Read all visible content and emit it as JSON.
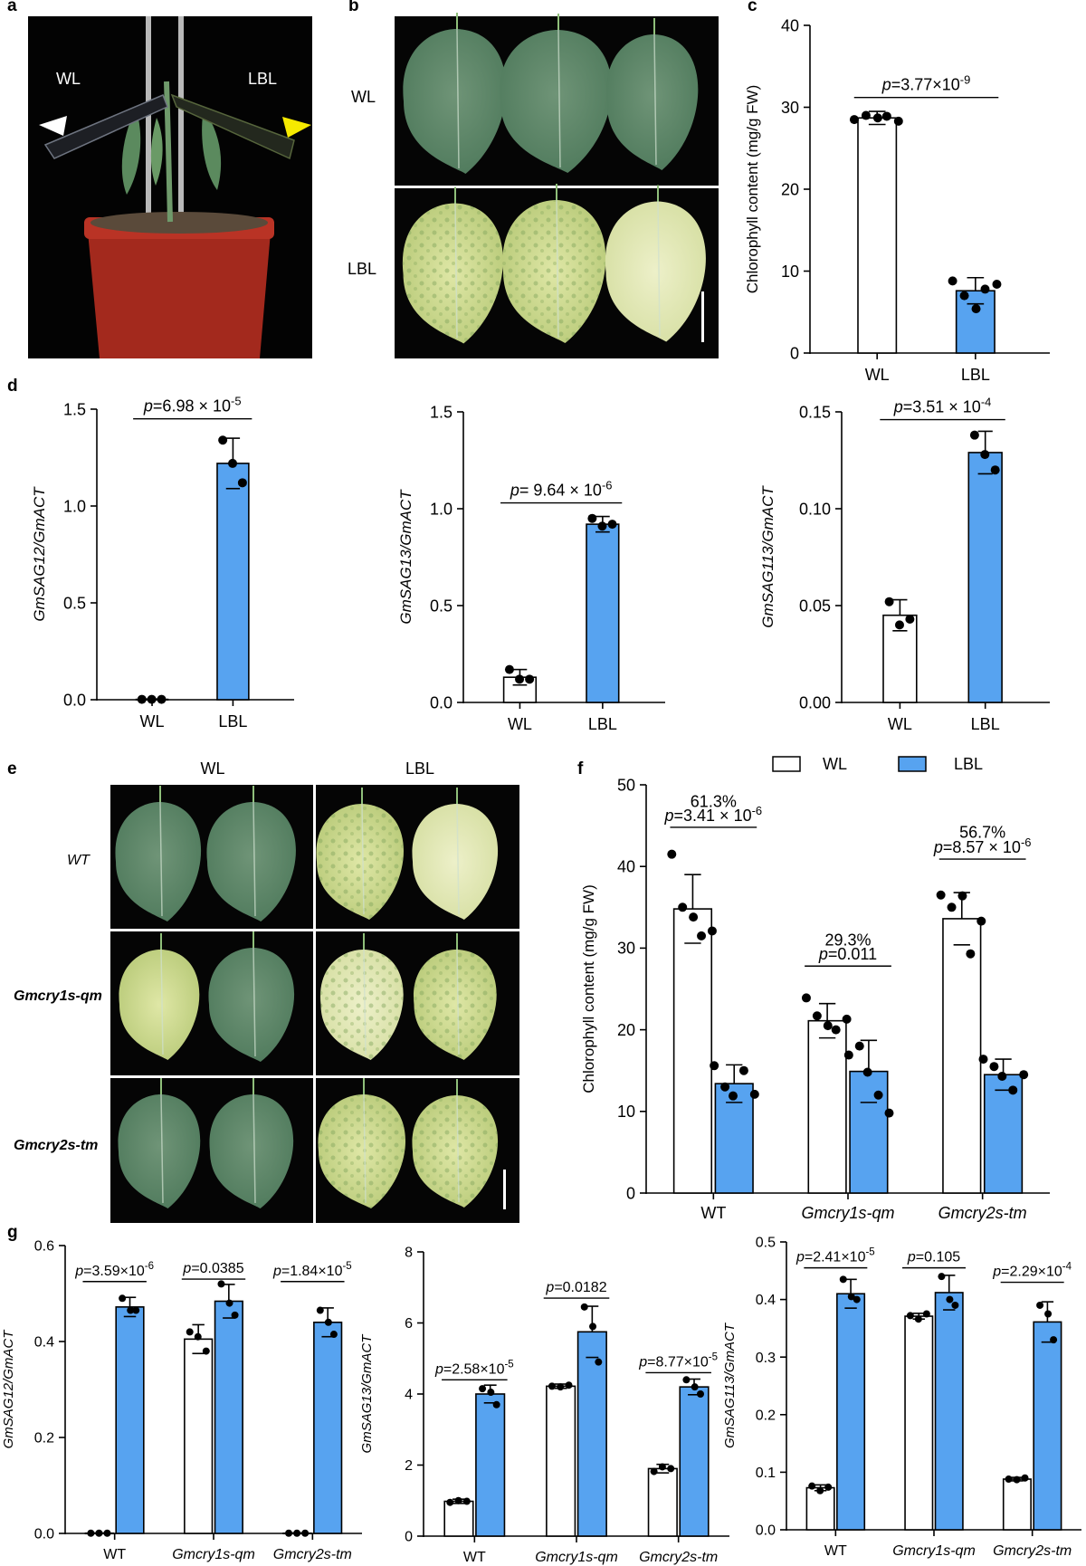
{
  "panel_labels": {
    "a": "a",
    "b": "b",
    "c": "c",
    "d": "d",
    "e": "e",
    "f": "f",
    "g": "g"
  },
  "photo_a": {
    "left": "WL",
    "right": "LBL"
  },
  "photo_b": {
    "row1": "WL",
    "row2": "LBL"
  },
  "photo_e": {
    "col1": "WL",
    "col2": "LBL",
    "row1": "WT",
    "row2": "Gmcry1s-qm",
    "row3": "Gmcry2s-tm"
  },
  "legend_f": {
    "wl": "WL",
    "lbl": "LBL"
  },
  "colors": {
    "wl": "#ffffff",
    "lbl": "#57a3f0",
    "stroke": "#000000"
  },
  "chart_data": [
    {
      "id": "c",
      "type": "bar",
      "ylabel": "Chlorophyll content (mg/g FW)",
      "ylim": [
        0,
        40
      ],
      "yticks": [
        0,
        10,
        20,
        30,
        40
      ],
      "categories": [
        "WL",
        "LBL"
      ],
      "series": [
        {
          "values": [
            28.7,
            7.6
          ],
          "errors": [
            0.8,
            1.6
          ],
          "colors": [
            "wl",
            "lbl"
          ]
        }
      ],
      "points": [
        [
          28.5,
          29.0,
          28.7,
          28.9,
          28.3
        ],
        [
          8.8,
          7.0,
          5.4,
          7.8,
          8.4
        ]
      ],
      "annotations": [
        {
          "text": "p=3.77×10-9",
          "base": "p=3.77×10",
          "exp": "-9",
          "y": 31.2
        }
      ]
    },
    {
      "id": "d1",
      "type": "bar",
      "ylabel": "GmSAG12/GmACT",
      "ylim": [
        0,
        1.5
      ],
      "yticks": [
        "0.0",
        "0.5",
        "1.0",
        "1.5"
      ],
      "categories": [
        "WL",
        "LBL"
      ],
      "series": [
        {
          "values": [
            0.002,
            1.22
          ],
          "errors": [
            0.002,
            0.13
          ],
          "colors": [
            "wl",
            "lbl"
          ]
        }
      ],
      "points": [
        [
          0.002,
          0.002,
          0.002
        ],
        [
          1.34,
          1.22,
          1.12
        ]
      ],
      "annotations": [
        {
          "text": "p=6.98 × 10-5",
          "base": "p=6.98 × 10",
          "exp": "-5",
          "y": 1.45
        }
      ]
    },
    {
      "id": "d2",
      "type": "bar",
      "ylabel": "GmSAG13/GmACT",
      "ylim": [
        0,
        1.5
      ],
      "yticks": [
        "0.0",
        "0.5",
        "1.0",
        "1.5"
      ],
      "categories": [
        "WL",
        "LBL"
      ],
      "series": [
        {
          "values": [
            0.13,
            0.92
          ],
          "errors": [
            0.04,
            0.04
          ],
          "colors": [
            "wl",
            "lbl"
          ]
        }
      ],
      "points": [
        [
          0.17,
          0.12,
          0.12
        ],
        [
          0.95,
          0.91,
          0.92
        ]
      ],
      "annotations": [
        {
          "text": "p= 9.64 × 10-6",
          "base": "p= 9.64 × 10",
          "exp": "-6",
          "y": 1.03
        }
      ]
    },
    {
      "id": "d3",
      "type": "bar",
      "ylabel": "GmSAG113/GmACT",
      "ylim": [
        0,
        0.15
      ],
      "yticks": [
        "0.00",
        "0.05",
        "0.10",
        "0.15"
      ],
      "categories": [
        "WL",
        "LBL"
      ],
      "series": [
        {
          "values": [
            0.045,
            0.129
          ],
          "errors": [
            0.008,
            0.011
          ],
          "colors": [
            "wl",
            "lbl"
          ]
        }
      ],
      "points": [
        [
          0.052,
          0.04,
          0.043
        ],
        [
          0.138,
          0.128,
          0.12
        ]
      ],
      "annotations": [
        {
          "text": "p=3.51 × 10-4",
          "base": "p=3.51 × 10",
          "exp": "-4",
          "y": 0.146
        }
      ]
    },
    {
      "id": "f",
      "type": "bar",
      "ylabel": "Chlorophyll content (mg/g FW)",
      "ylim": [
        0,
        50
      ],
      "yticks": [
        0,
        10,
        20,
        30,
        40,
        50
      ],
      "categories": [
        "WT",
        "Gmcry1s-qm",
        "Gmcry2s-tm"
      ],
      "italic_categories": [
        false,
        true,
        true
      ],
      "series": [
        {
          "name": "WL",
          "values": [
            34.8,
            21.1,
            33.6
          ],
          "errors": [
            4.2,
            2.1,
            3.2
          ]
        },
        {
          "name": "LBL",
          "values": [
            13.4,
            14.9,
            14.5
          ],
          "errors": [
            2.3,
            3.8,
            1.9
          ]
        }
      ],
      "points": [
        [
          [
            41.5,
            35.0,
            33.8,
            31.5,
            32.1
          ],
          [
            15.6,
            13.0,
            11.9,
            15.0,
            12.1
          ]
        ],
        [
          [
            23.9,
            21.7,
            20.5,
            20.0,
            21.3
          ],
          [
            16.9,
            18.0,
            14.8,
            12.0,
            9.8
          ]
        ],
        [
          [
            36.5,
            35.0,
            36.4,
            29.3,
            33.3
          ],
          [
            16.4,
            15.5,
            14.3,
            12.6,
            14.5
          ]
        ]
      ],
      "annotations": [
        {
          "text": "61.3%",
          "y": 47.3,
          "group": 0,
          "plain": true
        },
        {
          "text": "p=3.41 × 10-6",
          "base": "p=3.41 × 10",
          "exp": "-6",
          "y": 44.8,
          "group": 0
        },
        {
          "text": "29.3%",
          "y": 30.3,
          "group": 1,
          "plain": true
        },
        {
          "text": "p=0.011",
          "base": "p=0.011",
          "exp": "",
          "y": 27.8,
          "group": 1
        },
        {
          "text": "56.7%",
          "y": 43.5,
          "group": 2,
          "plain": true
        },
        {
          "text": "p=8.57 × 10-6",
          "base": "p=8.57 × 10",
          "exp": "-6",
          "y": 40.9,
          "group": 2
        }
      ]
    },
    {
      "id": "g1",
      "type": "bar",
      "ylabel": "GmSAG12/GmACT",
      "ylim": [
        0,
        0.6
      ],
      "yticks": [
        "0.0",
        "0.2",
        "0.4",
        "0.6"
      ],
      "categories": [
        "WT",
        "Gmcry1s-qm",
        "Gmcry2s-tm"
      ],
      "italic_categories": [
        false,
        true,
        true
      ],
      "series": [
        {
          "name": "WL",
          "values": [
            0.0005,
            0.405,
            0.0005
          ],
          "errors": [
            0.0005,
            0.03,
            0.0005
          ]
        },
        {
          "name": "LBL",
          "values": [
            0.472,
            0.484,
            0.44
          ],
          "errors": [
            0.02,
            0.035,
            0.03
          ]
        }
      ],
      "points": [
        [
          [
            0.0005,
            0.0005,
            0.0005
          ],
          [
            0.49,
            0.465,
            0.465
          ]
        ],
        [
          [
            0.42,
            0.41,
            0.38
          ],
          [
            0.52,
            0.48,
            0.455
          ]
        ],
        [
          [
            0.0005,
            0.0005,
            0.0005
          ],
          [
            0.465,
            0.44,
            0.415
          ]
        ]
      ],
      "annotations": [
        {
          "text": "p=3.59×10-6",
          "base": "p=3.59×10",
          "exp": "-6",
          "y": 0.525,
          "group": 0
        },
        {
          "text": "p=0.0385",
          "base": "p=0.0385",
          "exp": "",
          "y": 0.53,
          "group": 1
        },
        {
          "text": "p=1.84×10-5",
          "base": "p=1.84×10",
          "exp": "-5",
          "y": 0.525,
          "group": 2
        }
      ]
    },
    {
      "id": "g2",
      "type": "bar",
      "ylabel": "GmSAG13/GmACT",
      "ylim": [
        0,
        8
      ],
      "yticks": [
        0,
        2,
        4,
        6,
        8
      ],
      "categories": [
        "WT",
        "Gmcry1s-qm",
        "Gmcry2s-tm"
      ],
      "italic_categories": [
        false,
        true,
        true
      ],
      "series": [
        {
          "name": "WL",
          "values": [
            0.98,
            4.22,
            1.9
          ],
          "errors": [
            0.06,
            0.06,
            0.12
          ]
        },
        {
          "name": "LBL",
          "values": [
            4.0,
            5.75,
            4.2
          ],
          "errors": [
            0.25,
            0.72,
            0.22
          ]
        }
      ],
      "points": [
        [
          [
            0.95,
            1.0,
            0.98
          ],
          [
            4.15,
            4.05,
            3.7
          ]
        ],
        [
          [
            4.22,
            4.2,
            4.25
          ],
          [
            6.45,
            5.9,
            4.9
          ]
        ],
        [
          [
            1.82,
            1.95,
            1.9
          ],
          [
            4.4,
            4.2,
            4.0
          ]
        ]
      ],
      "annotations": [
        {
          "text": "p=2.58×10-5",
          "base": "p=2.58×10",
          "exp": "-5",
          "y": 4.4,
          "group": 0
        },
        {
          "text": "p=0.0182",
          "base": "p=0.0182",
          "exp": "",
          "y": 6.7,
          "group": 1
        },
        {
          "text": "p=8.77×10-5",
          "base": "p=8.77×10",
          "exp": "-5",
          "y": 4.6,
          "group": 2
        }
      ]
    },
    {
      "id": "g3",
      "type": "bar",
      "ylabel": "GmSAG113/GmACT",
      "ylim": [
        0,
        0.5
      ],
      "yticks": [
        "0.0",
        "0.1",
        "0.2",
        "0.3",
        "0.4",
        "0.5"
      ],
      "categories": [
        "WT",
        "Gmcry1s-qm",
        "Gmcry2s-tm"
      ],
      "italic_categories": [
        false,
        true,
        true
      ],
      "series": [
        {
          "name": "WL",
          "values": [
            0.073,
            0.371,
            0.088
          ],
          "errors": [
            0.005,
            0.005,
            0.003
          ]
        },
        {
          "name": "LBL",
          "values": [
            0.41,
            0.412,
            0.361
          ],
          "errors": [
            0.025,
            0.03,
            0.035
          ]
        }
      ],
      "points": [
        [
          [
            0.076,
            0.068,
            0.074
          ],
          [
            0.435,
            0.405,
            0.4
          ]
        ],
        [
          [
            0.372,
            0.366,
            0.375
          ],
          [
            0.44,
            0.4,
            0.39
          ]
        ],
        [
          [
            0.088,
            0.087,
            0.09
          ],
          [
            0.39,
            0.375,
            0.33
          ]
        ]
      ],
      "annotations": [
        {
          "text": "p=2.41×10-5",
          "base": "p=2.41×10",
          "exp": "-5",
          "y": 0.455,
          "group": 0
        },
        {
          "text": "p=0.105",
          "base": "p=0.105",
          "exp": "",
          "y": 0.455,
          "group": 1
        },
        {
          "text": "p=2.29×10-4",
          "base": "p=2.29×10",
          "exp": "-4",
          "y": 0.43,
          "group": 2
        }
      ]
    }
  ]
}
